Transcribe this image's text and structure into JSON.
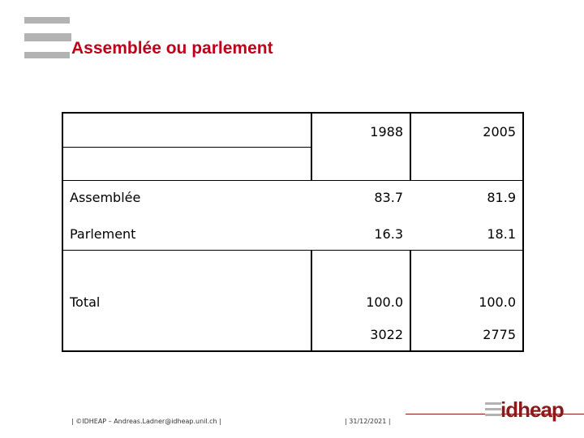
{
  "header": {
    "title": "Assemblée ou parlement"
  },
  "table": {
    "columns": [
      "1988",
      "2005"
    ],
    "rows": [
      {
        "label": "Assemblée",
        "values": [
          "83.7",
          "81.9"
        ]
      },
      {
        "label": "Parlement",
        "values": [
          "16.3",
          "18.1"
        ]
      },
      {
        "label": "Total",
        "values": [
          "100.0",
          "100.0"
        ]
      }
    ],
    "count_row": [
      "3022",
      "2775"
    ]
  },
  "footer": {
    "credit": "| ©IDHEAP – Andreas.Ladner@idheap.unil.ch |",
    "date": "| 31/12/2021 |",
    "logo": "idheap"
  }
}
